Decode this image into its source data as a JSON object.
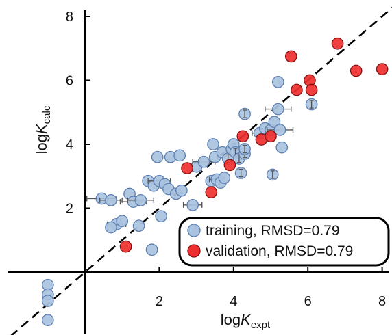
{
  "chart_data": {
    "type": "scatter",
    "title": "",
    "xlabel": {
      "main": "log",
      "italic": "K",
      "sub": "expt"
    },
    "ylabel": {
      "main": "log",
      "italic": "K",
      "sub": "calc"
    },
    "xlim": [
      -2.1,
      8.2
    ],
    "ylim": [
      -1.6,
      8.4
    ],
    "xticks": [
      2,
      4,
      6,
      8
    ],
    "yticks": [
      2,
      4,
      6,
      8
    ],
    "diagonal": "y = x (dashed)",
    "legend_position": "bottom-right",
    "colors": {
      "training": "#a9c2e0",
      "training_edge": "#5c7fb0",
      "validation": "#ef2f2f",
      "validation_edge": "#8a1010",
      "errorbar": "#555555",
      "diagonal": "#000000"
    },
    "series": [
      {
        "name": "training",
        "legend_label": "training, RMSD=0.79",
        "points": [
          {
            "x": -1.0,
            "y": -0.4
          },
          {
            "x": -1.0,
            "y": -0.7
          },
          {
            "x": -1.0,
            "y": -0.9
          },
          {
            "x": -1.0,
            "y": -1.5
          },
          {
            "x": 0.45,
            "y": 2.3,
            "xerr": 0.4
          },
          {
            "x": 0.7,
            "y": 2.25,
            "xerr": 0.3
          },
          {
            "x": 0.85,
            "y": 1.5,
            "xerr": 0.25
          },
          {
            "x": 0.7,
            "y": 1.4
          },
          {
            "x": 1.0,
            "y": 1.6
          },
          {
            "x": 1.2,
            "y": 2.45
          },
          {
            "x": 1.3,
            "y": 2.2,
            "xerr": 0.35
          },
          {
            "x": 1.45,
            "y": 1.45
          },
          {
            "x": 1.5,
            "y": 2.25,
            "xerr": 0.35
          },
          {
            "x": 1.7,
            "y": 2.85
          },
          {
            "x": 1.85,
            "y": 2.7
          },
          {
            "x": 1.8,
            "y": 0.7
          },
          {
            "x": 1.95,
            "y": 3.6
          },
          {
            "x": 2.0,
            "y": 2.85,
            "xerr": 0.3
          },
          {
            "x": 2.05,
            "y": 1.75
          },
          {
            "x": 2.15,
            "y": 2.75
          },
          {
            "x": 2.25,
            "y": 2.6
          },
          {
            "x": 2.3,
            "y": 3.6
          },
          {
            "x": 2.45,
            "y": 2.45
          },
          {
            "x": 2.55,
            "y": 3.65
          },
          {
            "x": 2.6,
            "y": 2.55
          },
          {
            "x": 2.9,
            "y": 2.1,
            "xerr": 0.25
          },
          {
            "x": 3.0,
            "y": 3.3
          },
          {
            "x": 3.2,
            "y": 3.45,
            "xerr": 0.3
          },
          {
            "x": 3.4,
            "y": 2.85
          },
          {
            "x": 3.45,
            "y": 4.0
          },
          {
            "x": 3.5,
            "y": 3.6
          },
          {
            "x": 3.55,
            "y": 2.9,
            "xerr": 0.2
          },
          {
            "x": 3.65,
            "y": 2.8
          },
          {
            "x": 3.7,
            "y": 3.75
          },
          {
            "x": 3.75,
            "y": 2.95
          },
          {
            "x": 3.85,
            "y": 3.55,
            "yerr": 0.12
          },
          {
            "x": 3.95,
            "y": 3.85
          },
          {
            "x": 4.0,
            "y": 4.0
          },
          {
            "x": 4.05,
            "y": 3.75,
            "yerr": 0.12
          },
          {
            "x": 4.15,
            "y": 3.55,
            "yerr": 0.12
          },
          {
            "x": 4.3,
            "y": 3.7,
            "yerr": 0.12
          },
          {
            "x": 4.3,
            "y": 3.85,
            "yerr": 0.12
          },
          {
            "x": 4.2,
            "y": 3.1,
            "yerr": 0.12
          },
          {
            "x": 4.3,
            "y": 4.95,
            "yerr": 0.12
          },
          {
            "x": 4.7,
            "y": 4.35,
            "xerr": 0.2
          },
          {
            "x": 4.85,
            "y": 4.5
          },
          {
            "x": 5.0,
            "y": 4.45
          },
          {
            "x": 5.05,
            "y": 3.05,
            "yerr": 0.12
          },
          {
            "x": 5.1,
            "y": 4.7
          },
          {
            "x": 5.2,
            "y": 5.1,
            "xerr": 0.35
          },
          {
            "x": 5.2,
            "y": 5.95
          },
          {
            "x": 5.25,
            "y": 4.45,
            "xerr": 0.35
          },
          {
            "x": 5.3,
            "y": 3.9
          },
          {
            "x": 6.1,
            "y": 5.25,
            "yerr": 0.12
          }
        ]
      },
      {
        "name": "validation",
        "legend_label": "validation, RMSD=0.79",
        "points": [
          {
            "x": 1.1,
            "y": 0.8
          },
          {
            "x": 2.75,
            "y": 3.25
          },
          {
            "x": 3.4,
            "y": 2.5
          },
          {
            "x": 3.9,
            "y": 3.35
          },
          {
            "x": 4.25,
            "y": 4.25
          },
          {
            "x": 4.75,
            "y": 4.15
          },
          {
            "x": 5.0,
            "y": 4.25
          },
          {
            "x": 5.55,
            "y": 6.75
          },
          {
            "x": 5.7,
            "y": 5.7
          },
          {
            "x": 6.05,
            "y": 6.0
          },
          {
            "x": 6.1,
            "y": 5.7
          },
          {
            "x": 6.8,
            "y": 7.15
          },
          {
            "x": 7.3,
            "y": 6.3
          },
          {
            "x": 8.0,
            "y": 6.35
          }
        ]
      }
    ]
  }
}
